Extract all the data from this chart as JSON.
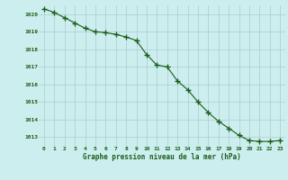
{
  "x": [
    0,
    1,
    2,
    3,
    4,
    5,
    6,
    7,
    8,
    9,
    10,
    11,
    12,
    13,
    14,
    15,
    16,
    17,
    18,
    19,
    20,
    21,
    22,
    23
  ],
  "y": [
    1020.3,
    1020.1,
    1019.8,
    1019.5,
    1019.2,
    1019.0,
    1018.95,
    1018.85,
    1018.7,
    1018.5,
    1017.7,
    1017.1,
    1017.0,
    1016.2,
    1015.7,
    1015.0,
    1014.4,
    1013.9,
    1013.5,
    1013.1,
    1012.8,
    1012.75,
    1012.75,
    1012.8
  ],
  "line_color": "#1a5c1a",
  "marker": "+",
  "marker_color": "#1a5c1a",
  "bg_color": "#cceeee",
  "grid_color": "#aacccc",
  "xlabel": "Graphe pression niveau de la mer (hPa)",
  "xlabel_color": "#1a5c1a",
  "tick_color": "#1a5c1a",
  "ylim": [
    1012.5,
    1020.5
  ],
  "xlim": [
    -0.5,
    23.5
  ],
  "yticks": [
    1013,
    1014,
    1015,
    1016,
    1017,
    1018,
    1019,
    1020
  ],
  "xticks": [
    0,
    1,
    2,
    3,
    4,
    5,
    6,
    7,
    8,
    9,
    10,
    11,
    12,
    13,
    14,
    15,
    16,
    17,
    18,
    19,
    20,
    21,
    22,
    23
  ],
  "xtick_labels": [
    "0",
    "1",
    "2",
    "3",
    "4",
    "5",
    "6",
    "7",
    "8",
    "9",
    "10",
    "11",
    "12",
    "13",
    "14",
    "15",
    "16",
    "17",
    "18",
    "19",
    "20",
    "21",
    "22",
    "23"
  ],
  "linewidth": 0.8,
  "markersize": 4
}
